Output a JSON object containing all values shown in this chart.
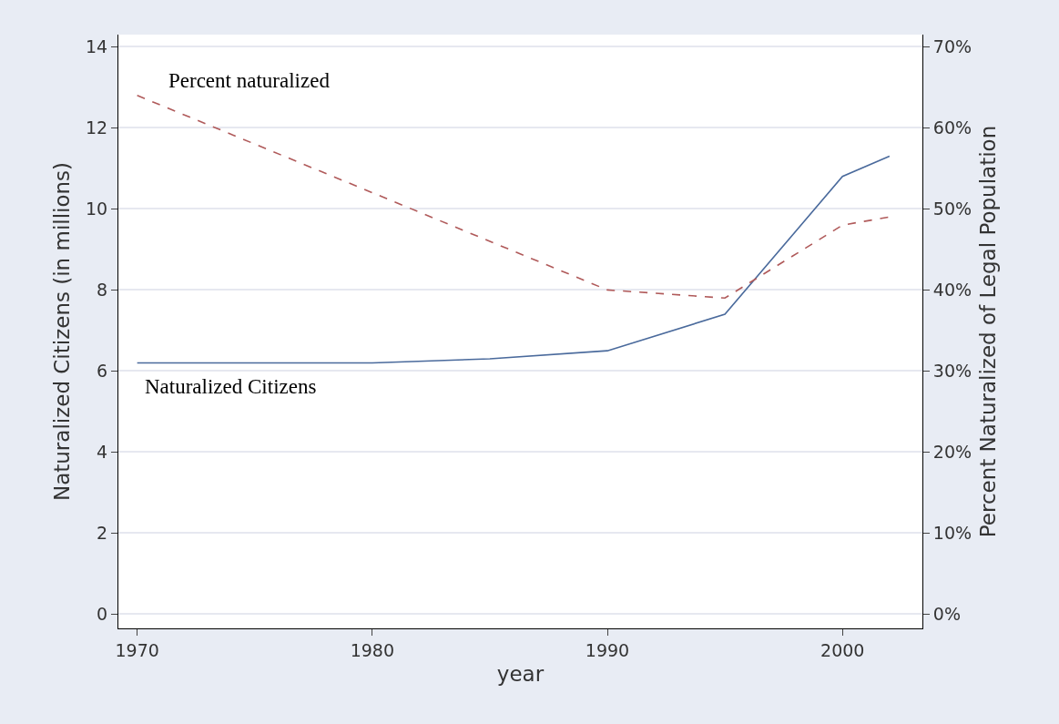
{
  "chart_data": {
    "type": "line",
    "xlabel": "year",
    "ylabel": "Naturalized Citizens (in millions)",
    "y2label": "Percent Naturalized of Legal Population",
    "series": [
      {
        "name": "Naturalized Citizens",
        "color": "#4a6a9c",
        "line_style": "solid",
        "x": [
          1970,
          1980,
          1985,
          1990,
          1995,
          2000,
          2002
        ],
        "values": [
          6.2,
          6.2,
          6.3,
          6.5,
          7.4,
          10.8,
          11.3
        ]
      },
      {
        "name": "Percent naturalized",
        "color": "#b05a5a",
        "line_style": "dashed",
        "axis": "y2",
        "x": [
          1970,
          1990,
          1995,
          2000,
          2002
        ],
        "values": [
          64,
          40,
          39,
          48,
          49
        ]
      }
    ],
    "xlim": [
      1969.2,
      2003.4
    ],
    "xticks": [
      1970,
      1980,
      1990,
      2000
    ],
    "ylim": [
      -0.35,
      14.3
    ],
    "yticks": [
      0,
      2,
      4,
      6,
      8,
      10,
      12,
      14
    ],
    "y2lim": [
      -1.75,
      71.5
    ],
    "y2ticks": [
      {
        "value": 0,
        "label": "0%"
      },
      {
        "value": 10,
        "label": "10%"
      },
      {
        "value": 20,
        "label": "20%"
      },
      {
        "value": 30,
        "label": "30%"
      },
      {
        "value": 40,
        "label": "40%"
      },
      {
        "value": 50,
        "label": "50%"
      },
      {
        "value": 60,
        "label": "60%"
      },
      {
        "value": 70,
        "label": "70%"
      }
    ],
    "grid": "y",
    "legend": false,
    "marker": "none"
  }
}
